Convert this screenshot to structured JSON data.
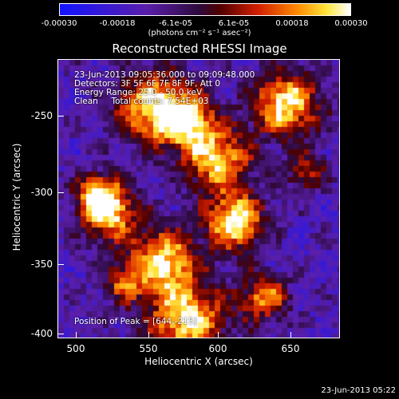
{
  "colorbar": {
    "ticks": [
      "-0.00030",
      "-0.00018",
      "-6.1e-05",
      "6.1e-05",
      "0.00018",
      "0.00030"
    ],
    "units": "(photons cm⁻² s⁻¹ asec⁻²)"
  },
  "title": "Reconstructed RHESSI Image",
  "annotations": {
    "line1": "23-Jun-2013 09:05:36.000 to 09:09:48.000",
    "line2": "Detectors: 3F 5F 6F 7F 8F 9F, Att 0",
    "line3": "Energy Range: 25.0 - 50.0 keV",
    "line4": "Clean     Total counts: 7.54E+03",
    "peak": "Position of Peak = [644,-215]"
  },
  "axes": {
    "xlabel": "Heliocentric X (arcsec)",
    "ylabel": "Heliocentric Y (arcsec)",
    "xticks": [
      "500",
      "550",
      "600",
      "650"
    ],
    "yticks": [
      "-250",
      "-300",
      "-350",
      "-400"
    ]
  },
  "timestamp": "23-Jun-2013 05:22",
  "colors": {
    "low": "#1a1aff",
    "mid": "#5a1a8a",
    "high": "#ffffff"
  }
}
